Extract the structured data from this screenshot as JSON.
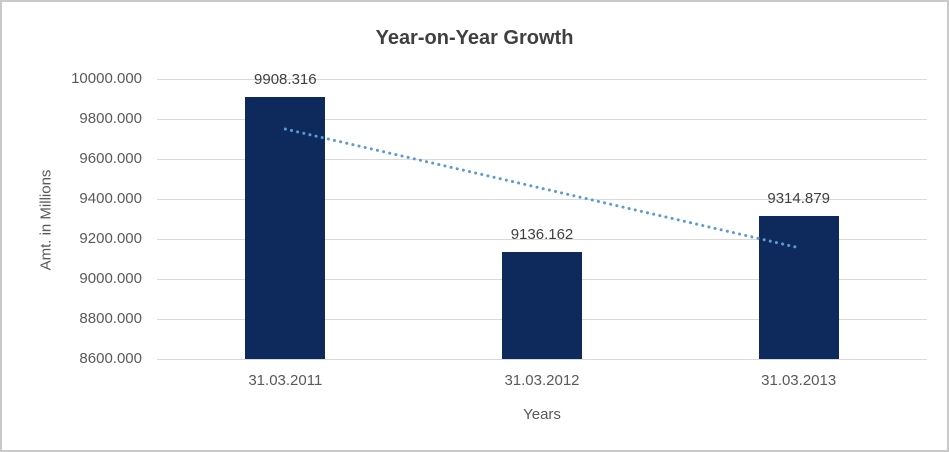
{
  "frame": {
    "background": "#FFFFFF",
    "border_color": "#C9C9C9"
  },
  "chart_data": {
    "type": "bar",
    "title": "Year-on-Year Growth",
    "categories": [
      "31.03.2011",
      "31.03.2012",
      "31.03.2013"
    ],
    "values": [
      9908.316,
      9136.162,
      9314.879
    ],
    "data_labels": [
      "9908.316",
      "9136.162",
      "9314.879"
    ],
    "xlabel": "Years",
    "ylabel": "Amt. in Millions",
    "ylim": [
      8600,
      10000
    ],
    "ytick_step": 200,
    "ytick_labels": [
      "10000.000",
      "9800.000",
      "9600.000",
      "9400.000",
      "9200.000",
      "9000.000",
      "8800.000",
      "8600.000"
    ],
    "grid": true,
    "legend_position": "none",
    "trendline": {
      "style": "dotted",
      "start_value": 9749.8,
      "end_value": 9156.4
    },
    "colors": {
      "bar": "#0E2A5C",
      "trendline": "#5B9BD5",
      "gridline": "#D9D9D9",
      "title_text": "#404040",
      "axis_text": "#595959",
      "data_label_text": "#404040"
    }
  }
}
